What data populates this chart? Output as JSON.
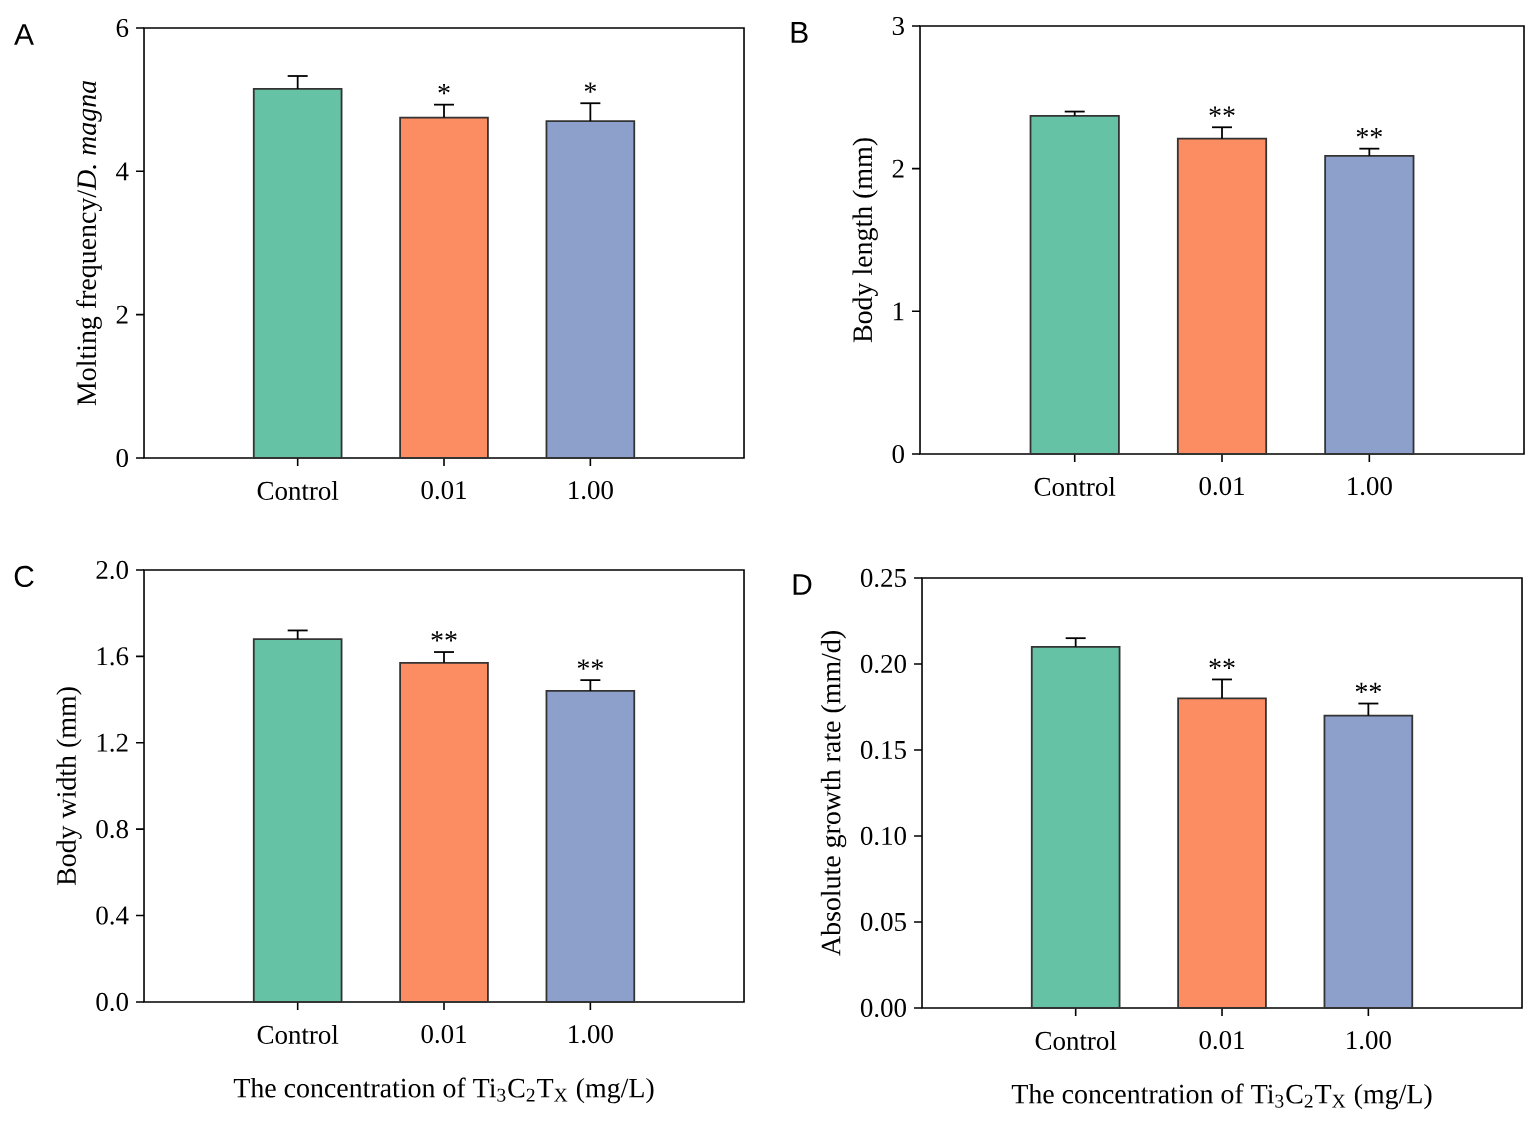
{
  "chart_data": [
    {
      "type": "bar",
      "title": "A",
      "ylabel": "Molting frequency/*D. magna*",
      "categories": [
        "Control",
        "0.01",
        "1.00"
      ],
      "values": [
        5.15,
        4.75,
        4.7
      ],
      "colors": [
        "#66c2a5",
        "#fc8d62",
        "#8da0cb"
      ],
      "errors": [
        [
          5.15,
          5.33
        ],
        [
          4.75,
          4.93
        ],
        [
          4.7,
          4.95
        ]
      ],
      "ylim": [
        0,
        6
      ],
      "yticks": [
        0,
        2,
        4,
        6
      ],
      "annotations": [
        {
          "text": "*",
          "x": "0.01",
          "y": 4.93
        },
        {
          "text": "*",
          "x": "1.00",
          "y": 4.95
        }
      ]
    },
    {
      "type": "bar",
      "title": "B",
      "ylabel": "Body length (mm)",
      "categories": [
        "Control",
        "0.01",
        "1.00"
      ],
      "values": [
        2.37,
        2.21,
        2.09
      ],
      "colors": [
        "#66c2a5",
        "#fc8d62",
        "#8da0cb"
      ],
      "errors": [
        [
          2.37,
          2.4
        ],
        [
          2.21,
          2.29
        ],
        [
          2.09,
          2.14
        ]
      ],
      "ylim": [
        0,
        3
      ],
      "yticks": [
        0,
        1,
        2,
        3
      ],
      "annotations": [
        {
          "text": "**",
          "x": "0.01",
          "y": 2.29
        },
        {
          "text": "**",
          "x": "1.00",
          "y": 2.14
        }
      ]
    },
    {
      "type": "bar",
      "title": "C",
      "ylabel": "Body width (mm)",
      "xlabel": "The concentration of Ti$_{3}$C$_{2}$T$_{X}$ (mg/L)",
      "categories": [
        "Control",
        "0.01",
        "1.00"
      ],
      "values": [
        1.68,
        1.57,
        1.44
      ],
      "colors": [
        "#66c2a5",
        "#fc8d62",
        "#8da0cb"
      ],
      "errors": [
        [
          1.68,
          1.72
        ],
        [
          1.57,
          1.62
        ],
        [
          1.44,
          1.49
        ]
      ],
      "ylim": [
        0,
        2
      ],
      "yticks": [
        {
          "value": 0,
          "label": "0.0"
        },
        0.4,
        0.8,
        1.2,
        1.6,
        {
          "value": 2,
          "label": "2.0"
        }
      ],
      "annotations": [
        {
          "text": "**",
          "x": "0.01",
          "y": 1.62
        },
        {
          "text": "**",
          "x": "1.00",
          "y": 1.49
        }
      ]
    },
    {
      "type": "bar",
      "title": "D",
      "ylabel": "Absolute growth rate (mm/d)",
      "xlabel": "The concentration of Ti$_{3}$C$_{2}$T$_{X}$ (mg/L)",
      "categories": [
        "Control",
        "0.01",
        "1.00"
      ],
      "values": [
        0.21,
        0.18,
        0.17
      ],
      "colors": [
        "#66c2a5",
        "#fc8d62",
        "#8da0cb"
      ],
      "errors": [
        [
          0.21,
          0.215
        ],
        [
          0.18,
          0.191
        ],
        [
          0.17,
          0.177
        ]
      ],
      "ylim": [
        0,
        0.25
      ],
      "yticks": [
        {
          "value": 0,
          "label": "0.00"
        },
        0.05,
        {
          "value": 0.1,
          "label": "0.10"
        },
        0.15,
        {
          "value": 0.2,
          "label": "0.20"
        },
        0.25
      ],
      "annotations": [
        {
          "text": "**",
          "x": "0.01",
          "y": 0.191
        },
        {
          "text": "**",
          "x": "1.00",
          "y": 0.177
        }
      ]
    }
  ]
}
